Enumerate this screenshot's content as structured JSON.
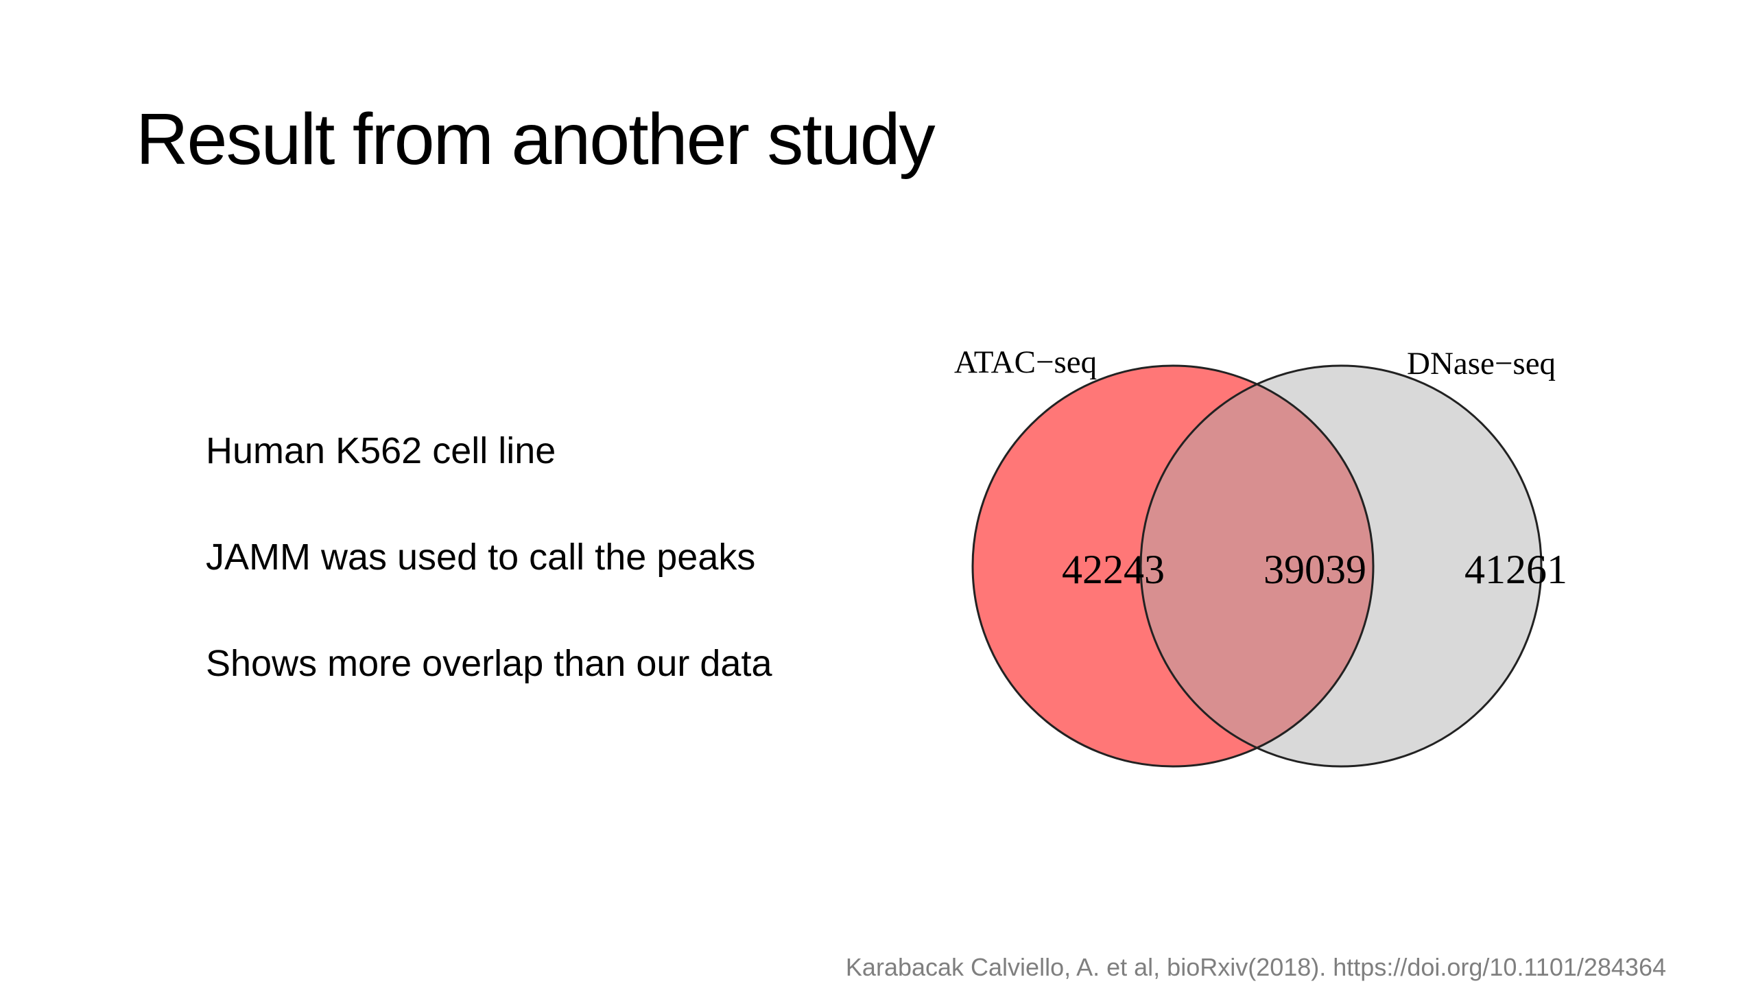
{
  "slide": {
    "title": "Result from another study",
    "bullets": [
      "Human K562 cell line",
      "JAMM was used to call the peaks",
      "Shows more overlap than our data"
    ],
    "citation": "Karabacak Calviello, A. et al, bioRxiv(2018). https://doi.org/10.1101/284364"
  },
  "venn": {
    "sets": [
      {
        "name": "ATAC−seq",
        "unique": "42243",
        "color": "#ff7777"
      },
      {
        "name": "DNase−seq",
        "unique": "41261",
        "color": "#d9d9d9"
      }
    ],
    "overlap": "39039",
    "overlap_color": "#d88f90",
    "outline_color": "#222222"
  }
}
